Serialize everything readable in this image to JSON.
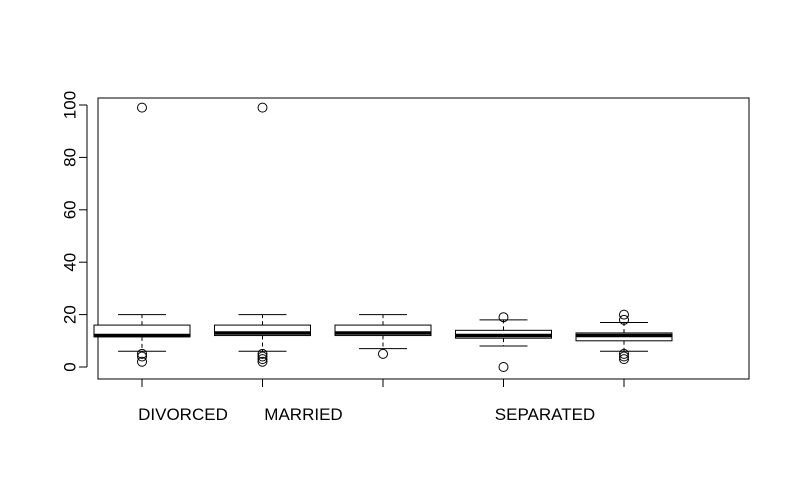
{
  "chart_data": {
    "type": "box",
    "title": "",
    "xlabel": "",
    "ylabel": "",
    "ylim": [
      0,
      100
    ],
    "y_ticks": [
      0,
      20,
      40,
      60,
      80,
      100
    ],
    "y_tick_labels": [
      "0",
      "20",
      "40",
      "60",
      "80",
      "100"
    ],
    "categories": [
      "DIVORCED",
      "MARRIED",
      "",
      "SEPARATED",
      ""
    ],
    "boxes": [
      {
        "category": "DIVORCED",
        "whisker_low": 6,
        "q1": 11.5,
        "median": 12,
        "q3": 16,
        "whisker_high": 20,
        "outliers": [
          99,
          5,
          4,
          2
        ]
      },
      {
        "category": "MARRIED",
        "whisker_low": 6,
        "q1": 12,
        "median": 13,
        "q3": 16,
        "whisker_high": 20,
        "outliers": [
          99,
          5,
          4,
          3,
          2
        ]
      },
      {
        "category": "",
        "whisker_low": 7,
        "q1": 12,
        "median": 13,
        "q3": 16,
        "whisker_high": 20,
        "outliers": [
          5
        ]
      },
      {
        "category": "SEPARATED",
        "whisker_low": 8,
        "q1": 11,
        "median": 12,
        "q3": 14,
        "whisker_high": 18,
        "outliers": [
          19,
          0
        ]
      },
      {
        "category": "",
        "whisker_low": 6,
        "q1": 10,
        "median": 12,
        "q3": 13,
        "whisker_high": 17,
        "outliers": [
          20,
          18,
          5,
          4,
          3
        ]
      }
    ],
    "grid": false,
    "legend": "none"
  }
}
